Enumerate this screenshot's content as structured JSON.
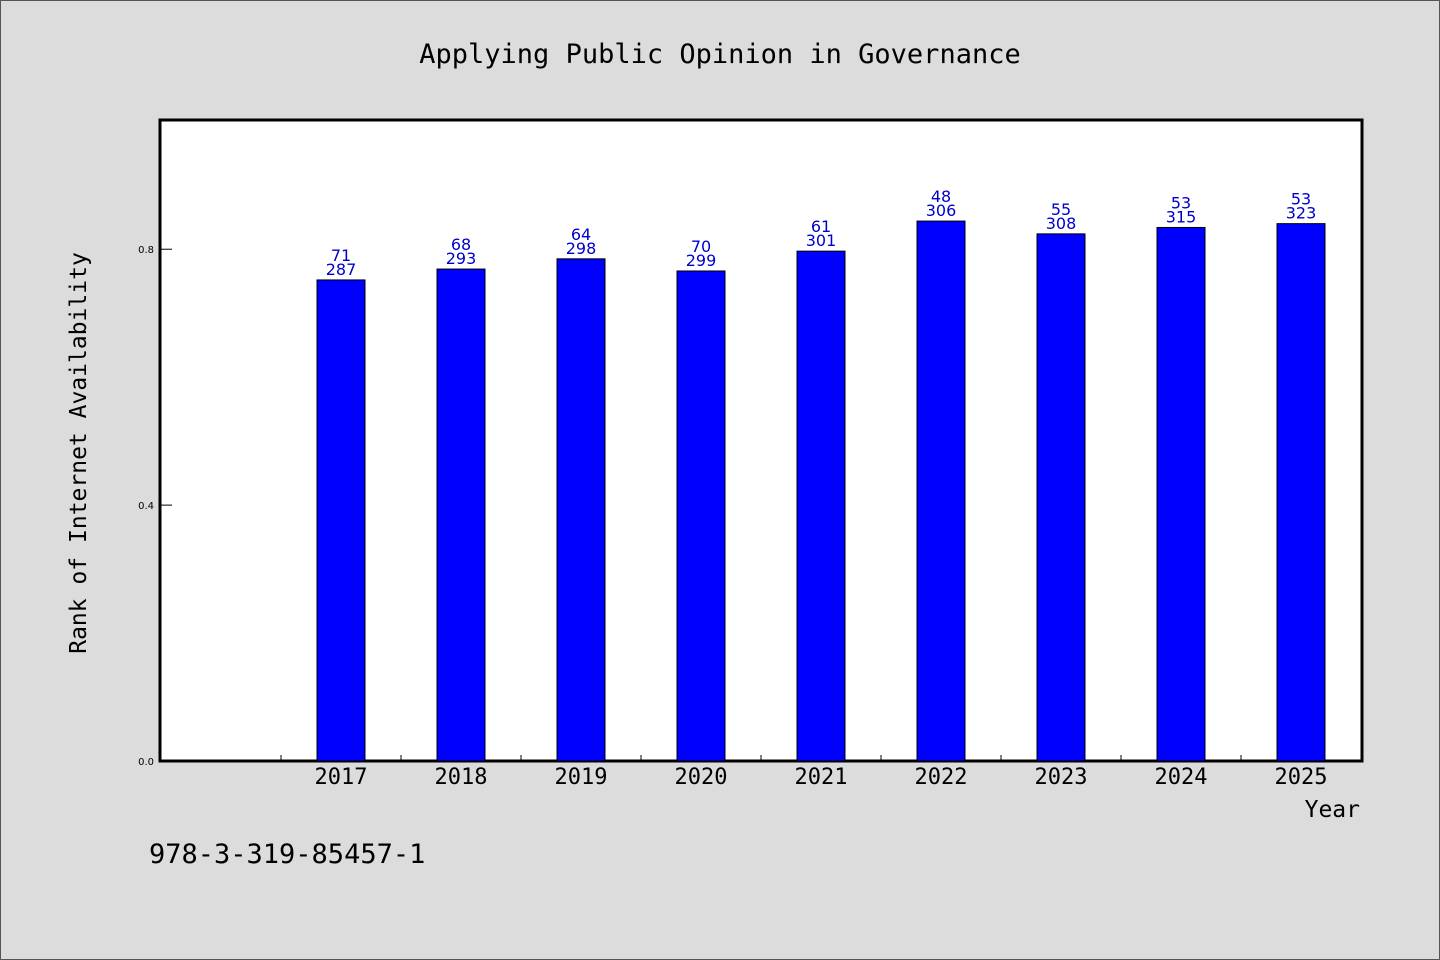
{
  "footnote": "978-3-319-85457-1",
  "colors": {
    "background": "#dcdcdc",
    "plot_background": "#ffffff",
    "bar_fill": "#0000ff",
    "label_color": "#0000cc"
  },
  "chart_data": {
    "type": "bar",
    "title": "Applying Public Opinion in Governance",
    "xlabel": "Year",
    "ylabel": "Rank of Internet Availability",
    "categories": [
      "2017",
      "2018",
      "2019",
      "2020",
      "2021",
      "2022",
      "2023",
      "2024",
      "2025"
    ],
    "values": [
      0.752,
      0.769,
      0.785,
      0.766,
      0.797,
      0.844,
      0.824,
      0.834,
      0.84
    ],
    "label_top": [
      "71",
      "68",
      "64",
      "70",
      "61",
      "48",
      "55",
      "53",
      "53"
    ],
    "label_bottom": [
      "287",
      "293",
      "298",
      "299",
      "301",
      "306",
      "308",
      "315",
      "323"
    ],
    "ylim": [
      0.0,
      1.0
    ],
    "yticks": [
      "0.0",
      "0.4",
      "0.8"
    ],
    "grid": false,
    "legend": "none"
  }
}
